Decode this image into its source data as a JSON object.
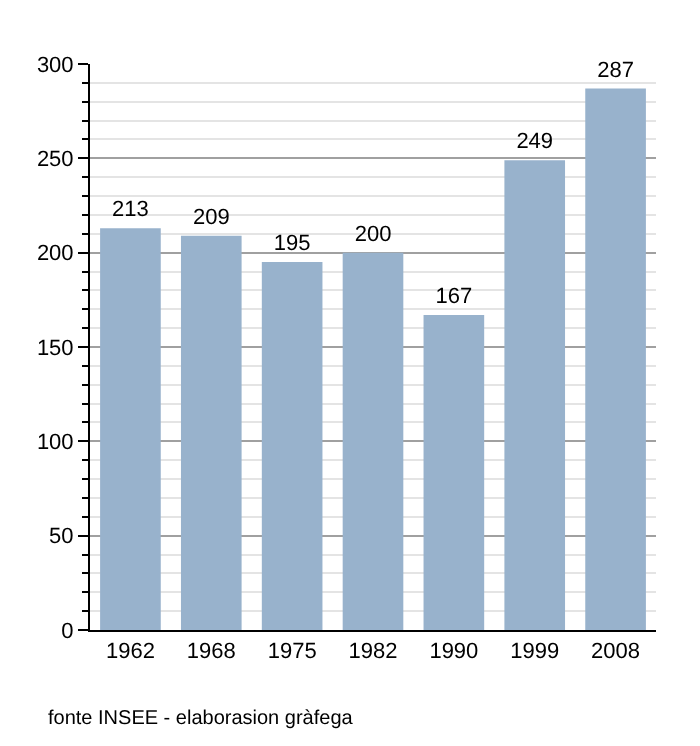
{
  "chart_data": {
    "type": "bar",
    "categories": [
      "1962",
      "1968",
      "1975",
      "1982",
      "1990",
      "1999",
      "2008"
    ],
    "values": [
      213,
      209,
      195,
      200,
      167,
      249,
      287
    ],
    "color": "#98b2cc",
    "data_labels": true,
    "ylim": [
      0,
      300
    ],
    "yticks": [
      0,
      50,
      100,
      150,
      200,
      250,
      300
    ],
    "grid": "y",
    "annotations": [
      "fonte INSEE - elaborasion gràfega"
    ]
  }
}
